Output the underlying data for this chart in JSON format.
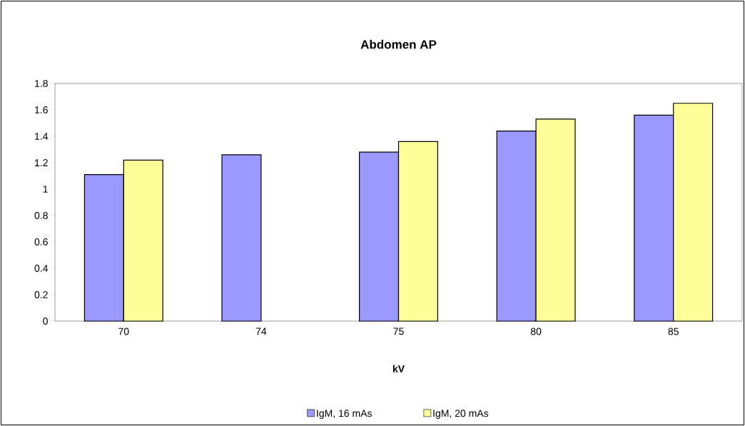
{
  "chart_data": {
    "type": "bar",
    "title": "Abdomen AP",
    "xlabel": "kV",
    "categories": [
      "70",
      "74",
      "75",
      "80",
      "85"
    ],
    "series": [
      {
        "name": "IgM, 16 mAs",
        "color": "#9999ff",
        "values": [
          1.11,
          1.26,
          1.28,
          1.44,
          1.56
        ]
      },
      {
        "name": "IgM, 20 mAs",
        "color": "#ffff99",
        "values": [
          1.22,
          null,
          1.36,
          1.53,
          1.65
        ]
      }
    ],
    "ylim": [
      0,
      1.8
    ],
    "yticks": [
      0,
      0.2,
      0.4,
      0.6,
      0.8,
      1,
      1.2,
      1.4,
      1.6,
      1.8
    ],
    "legend": "bottom"
  }
}
